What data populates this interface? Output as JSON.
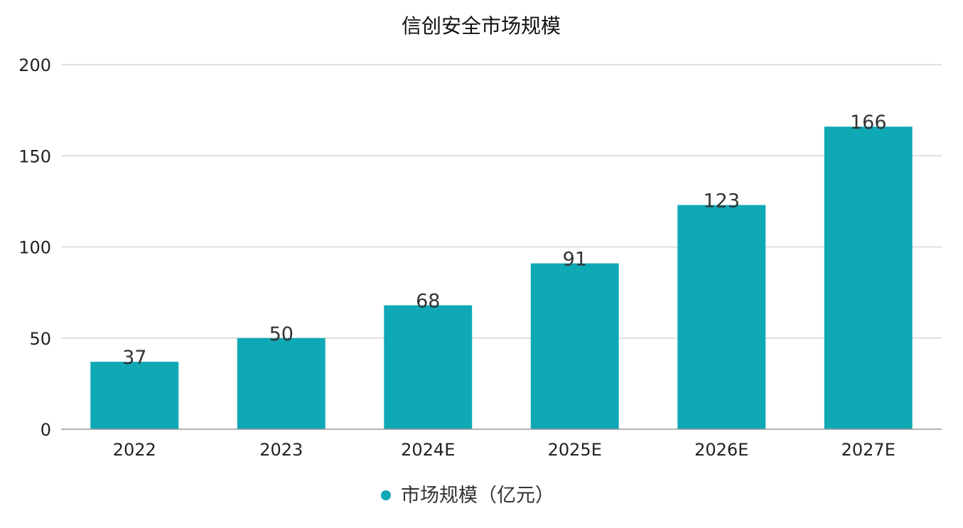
{
  "chart_data": {
    "type": "bar",
    "title": "信创安全市场规模",
    "categories": [
      "2022",
      "2023",
      "2024E",
      "2025E",
      "2026E",
      "2027E"
    ],
    "series": [
      {
        "name": "市场规模（亿元）",
        "values": [
          37,
          50,
          68,
          91,
          123,
          166
        ],
        "color": "#0fa8b5"
      }
    ],
    "ylim": [
      0,
      200
    ],
    "yticks": [
      0,
      50,
      100,
      150,
      200
    ],
    "grid": true,
    "data_labels": true,
    "legend_position": "bottom-center",
    "xlabel": "",
    "ylabel": ""
  }
}
